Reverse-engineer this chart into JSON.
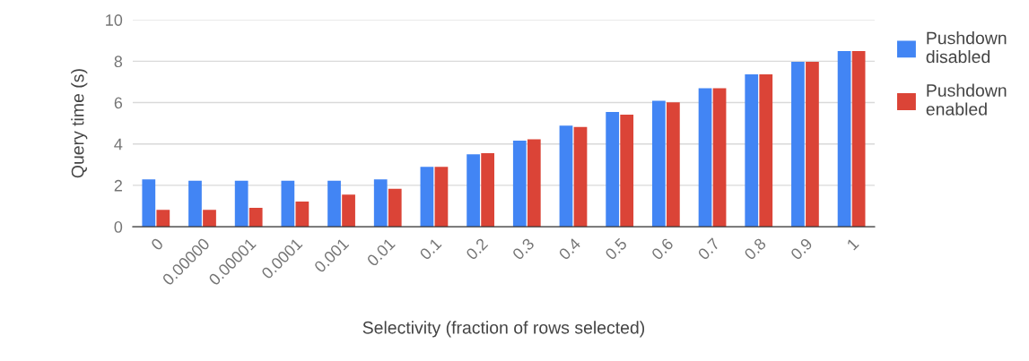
{
  "chart_data": {
    "type": "bar",
    "xlabel": "Selectivity (fraction of rows selected)",
    "ylabel": "Query time (s)",
    "categories": [
      "0",
      "0.00000",
      "0.00001",
      "0.0001",
      "0.001",
      "0.01",
      "0.1",
      "0.2",
      "0.3",
      "0.4",
      "0.5",
      "0.6",
      "0.7",
      "0.8",
      "0.9",
      "1"
    ],
    "series": [
      {
        "name": "Pushdown\ndisabled",
        "color": "#4285f4",
        "values": [
          2.29,
          2.22,
          2.22,
          2.22,
          2.22,
          2.29,
          2.89,
          3.5,
          4.16,
          4.89,
          5.55,
          6.09,
          6.69,
          7.37,
          7.97,
          8.49
        ]
      },
      {
        "name": "Pushdown\nenabled",
        "color": "#db4437",
        "values": [
          0.82,
          0.82,
          0.91,
          1.22,
          1.55,
          1.83,
          2.89,
          3.55,
          4.23,
          4.82,
          5.42,
          6.01,
          6.69,
          7.37,
          7.97,
          8.49
        ]
      }
    ],
    "ylim": [
      0,
      10
    ],
    "yticks": [
      0,
      2,
      4,
      6,
      8,
      10
    ],
    "grid": "y",
    "legend": "right"
  }
}
